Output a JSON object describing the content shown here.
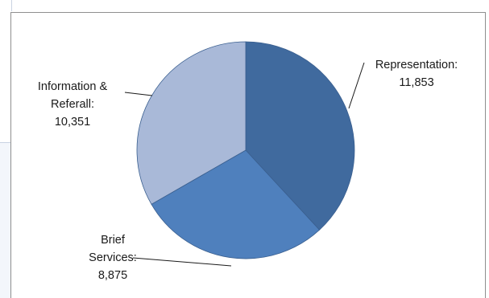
{
  "chart_data": {
    "type": "pie",
    "title": "",
    "slices": [
      {
        "label_lines": [
          "Representation:",
          "11,853"
        ],
        "value": 11853,
        "color": "#406a9e"
      },
      {
        "label_lines": [
          "Brief",
          "Services:",
          "8,875"
        ],
        "value": 8875,
        "color": "#4f80bd"
      },
      {
        "label_lines": [
          "Information &",
          "Referall:",
          "10,351"
        ],
        "value": 10351,
        "color": "#a9b9d8"
      }
    ],
    "legend": "none"
  }
}
